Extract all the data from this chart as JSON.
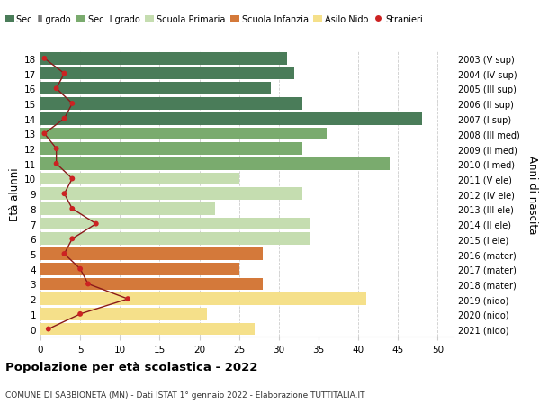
{
  "ages": [
    18,
    17,
    16,
    15,
    14,
    13,
    12,
    11,
    10,
    9,
    8,
    7,
    6,
    5,
    4,
    3,
    2,
    1,
    0
  ],
  "bar_values": [
    31,
    32,
    29,
    33,
    48,
    36,
    33,
    44,
    25,
    33,
    22,
    34,
    34,
    28,
    25,
    28,
    41,
    21,
    27
  ],
  "bar_colors": [
    "#4a7c59",
    "#4a7c59",
    "#4a7c59",
    "#4a7c59",
    "#4a7c59",
    "#7aab6e",
    "#7aab6e",
    "#7aab6e",
    "#c5ddb0",
    "#c5ddb0",
    "#c5ddb0",
    "#c5ddb0",
    "#c5ddb0",
    "#d4793a",
    "#d4793a",
    "#d4793a",
    "#f5e08a",
    "#f5e08a",
    "#f5e08a"
  ],
  "stranieri": [
    0.5,
    3,
    2,
    4,
    3,
    0.5,
    2,
    2,
    4,
    3,
    4,
    7,
    4,
    3,
    5,
    6,
    11,
    5,
    1
  ],
  "right_labels": [
    "2003 (V sup)",
    "2004 (IV sup)",
    "2005 (III sup)",
    "2006 (II sup)",
    "2007 (I sup)",
    "2008 (III med)",
    "2009 (II med)",
    "2010 (I med)",
    "2011 (V ele)",
    "2012 (IV ele)",
    "2013 (III ele)",
    "2014 (II ele)",
    "2015 (I ele)",
    "2016 (mater)",
    "2017 (mater)",
    "2018 (mater)",
    "2019 (nido)",
    "2020 (nido)",
    "2021 (nido)"
  ],
  "ylabel_left": "Età alunni",
  "ylabel_right": "Anni di nascita",
  "xlim": [
    0,
    52
  ],
  "xticks": [
    0,
    5,
    10,
    15,
    20,
    25,
    30,
    35,
    40,
    45,
    50
  ],
  "title_bold": "Popolazione per età scolastica - 2022",
  "subtitle": "COMUNE DI SABBIONETA (MN) - Dati ISTAT 1° gennaio 2022 - Elaborazione TUTTITALIA.IT",
  "legend_labels": [
    "Sec. II grado",
    "Sec. I grado",
    "Scuola Primaria",
    "Scuola Infanzia",
    "Asilo Nido",
    "Stranieri"
  ],
  "legend_colors": [
    "#4a7c59",
    "#7aab6e",
    "#c5ddb0",
    "#d4793a",
    "#f5e08a",
    "#cc2222"
  ],
  "background_color": "#ffffff",
  "grid_color": "#cccccc",
  "stranieri_line_color": "#8b1a1a",
  "stranieri_dot_color": "#cc2222"
}
